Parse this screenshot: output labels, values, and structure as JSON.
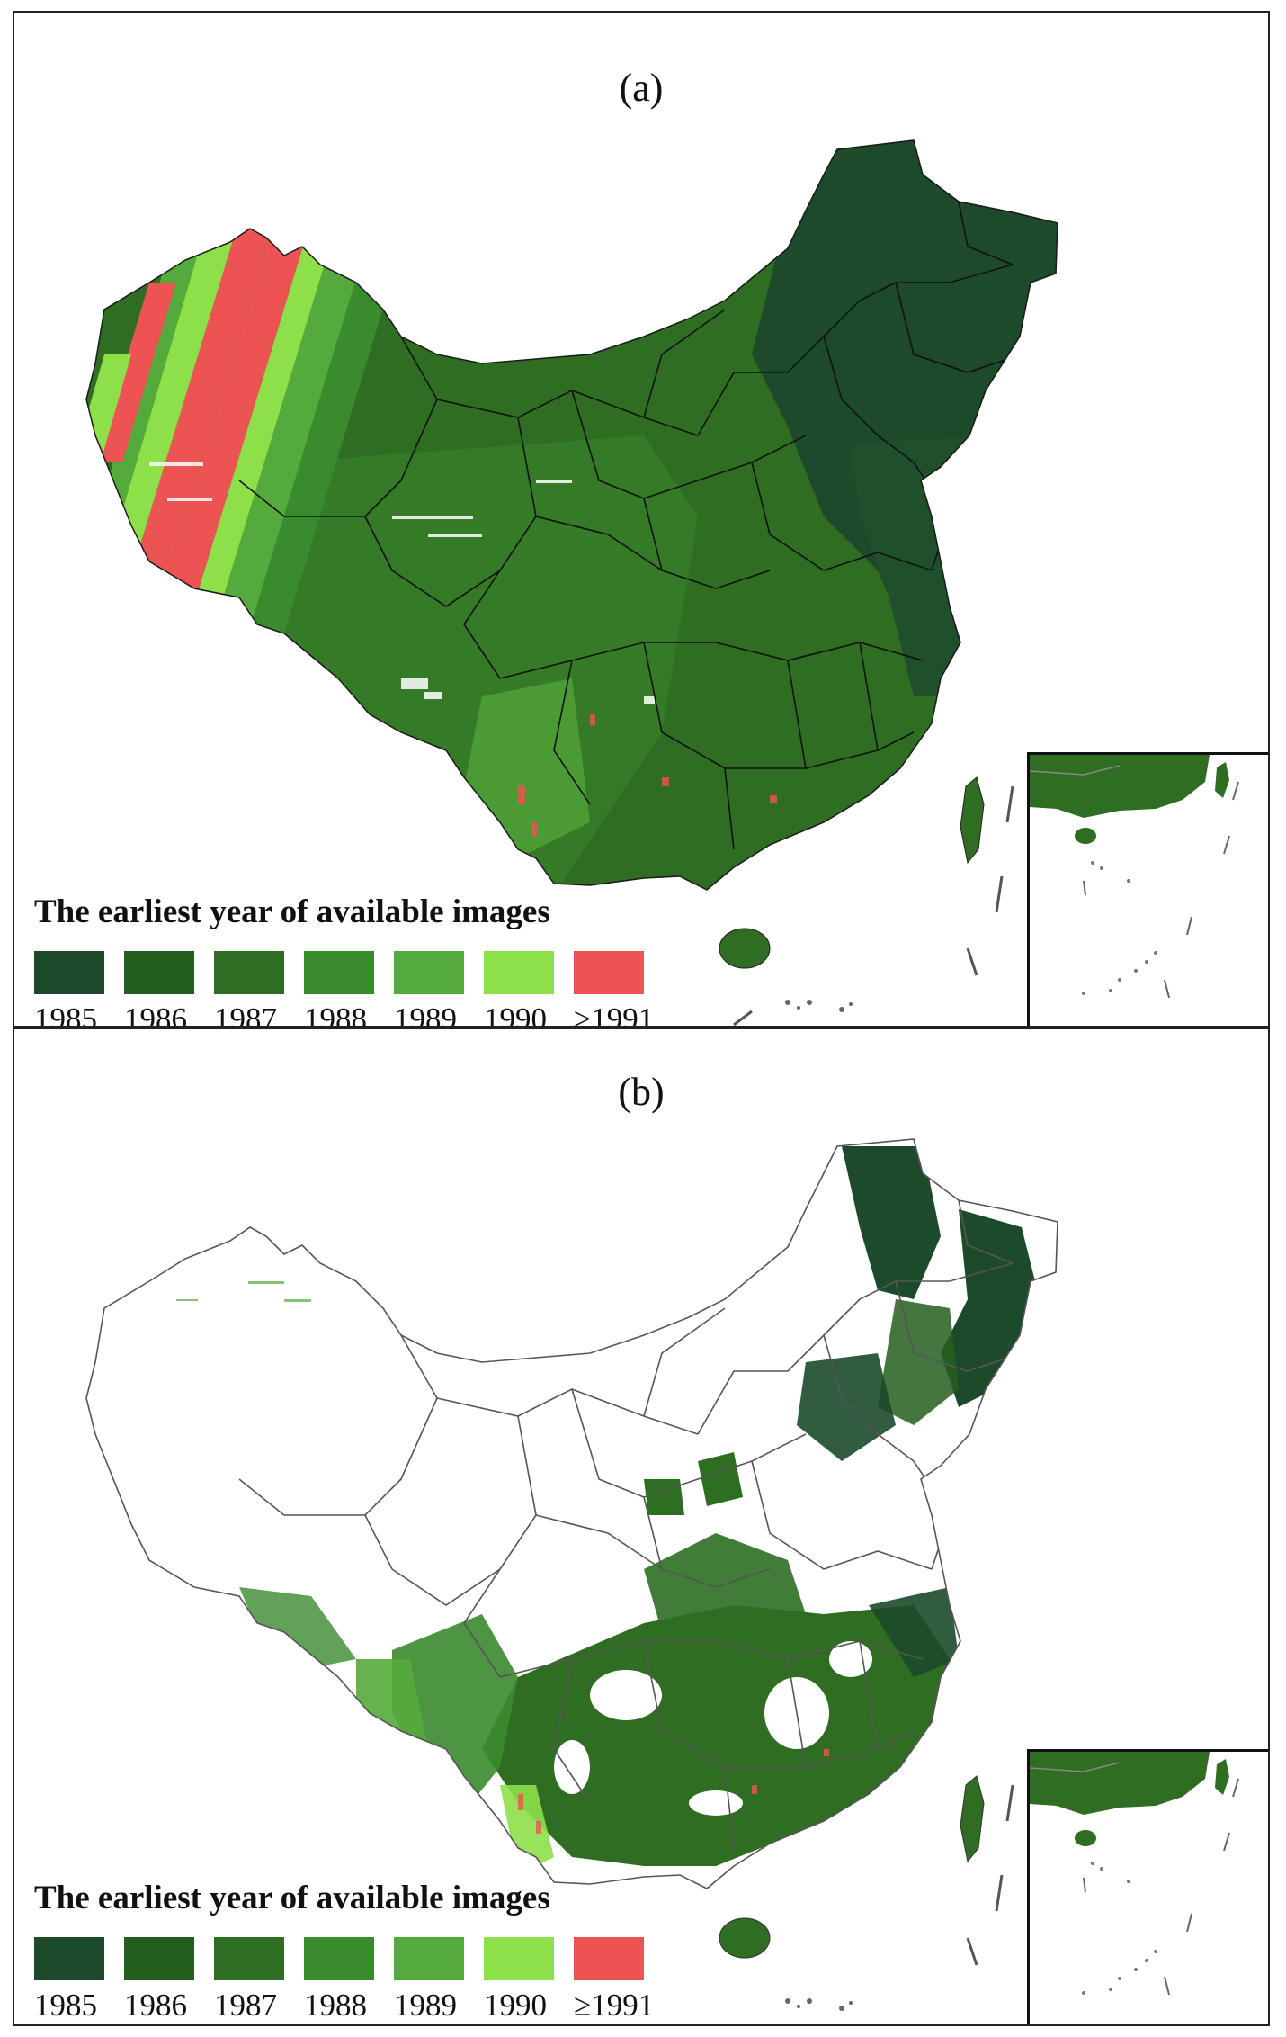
{
  "panels": [
    {
      "label": "(a)"
    },
    {
      "label": "(b)"
    }
  ],
  "legend": {
    "title": "The earliest year of available images",
    "items": [
      {
        "label": "1985",
        "color": "#1c4a2a"
      },
      {
        "label": "1986",
        "color": "#245e1f"
      },
      {
        "label": "1987",
        "color": "#2d6e23"
      },
      {
        "label": "1988",
        "color": "#3a8a2e"
      },
      {
        "label": "1989",
        "color": "#55aa3c"
      },
      {
        "label": "1990",
        "color": "#8ee04a"
      },
      {
        "label": "≥1991",
        "color": "#ec5454"
      }
    ]
  },
  "colors": {
    "boundary": "#111111",
    "outline": "#555555"
  }
}
